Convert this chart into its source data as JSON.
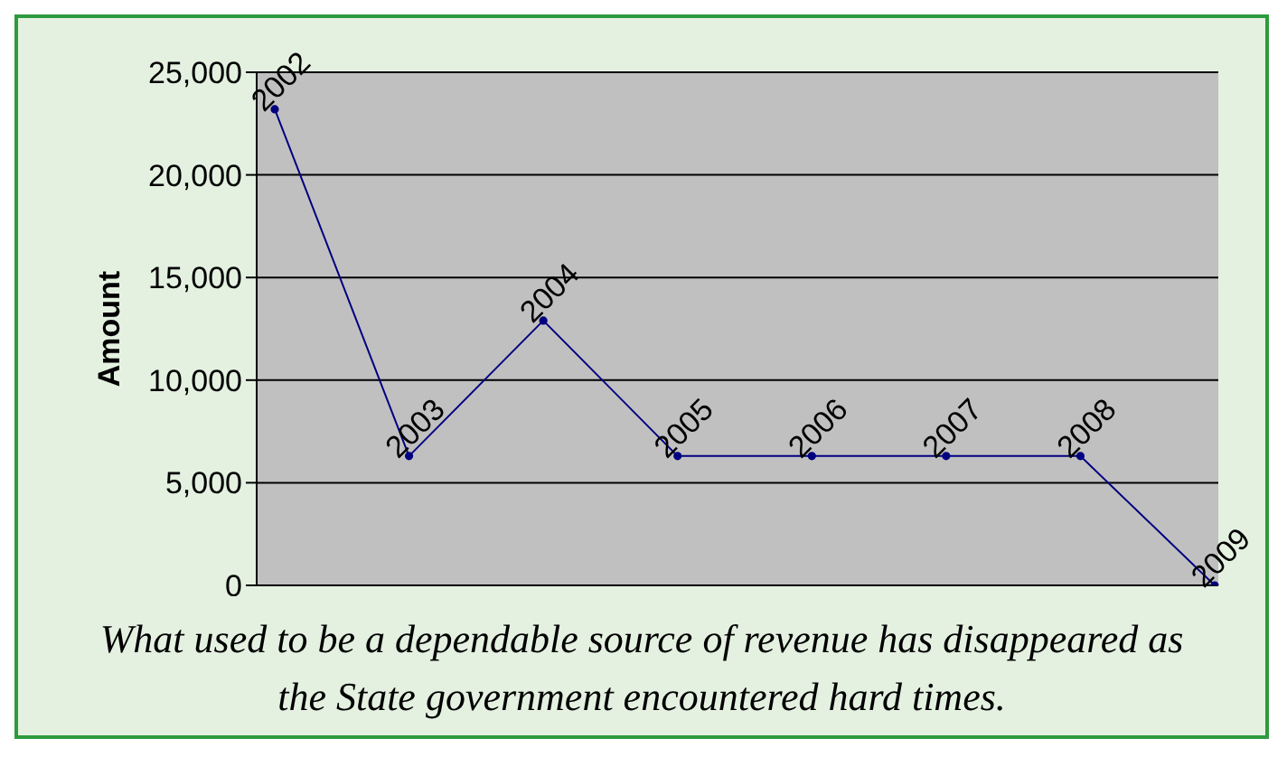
{
  "chart_data": {
    "type": "line",
    "ylabel": "Amount",
    "categories": [
      "2002",
      "2003",
      "2004",
      "2005",
      "2006",
      "2007",
      "2008",
      "2009"
    ],
    "series": [
      {
        "color": "#000080",
        "values": [
          23200,
          6300,
          12900,
          6300,
          6300,
          6300,
          6300,
          0
        ]
      }
    ],
    "ylim": [
      0,
      25000
    ],
    "yticks": [
      {
        "value": 0,
        "label": "0"
      },
      {
        "value": 5000,
        "label": "5,000"
      },
      {
        "value": 10000,
        "label": "10,000"
      },
      {
        "value": 15000,
        "label": "15,000"
      },
      {
        "value": 20000,
        "label": "20,000"
      },
      {
        "value": 25000,
        "label": "25,000"
      }
    ],
    "grid": "y",
    "legend": false,
    "marker": "circle",
    "line_style": "solid",
    "tick_labels": "y",
    "annotations": [
      "What used to be a dependable source of revenue has disappeared as the State government encountered hard times."
    ]
  }
}
